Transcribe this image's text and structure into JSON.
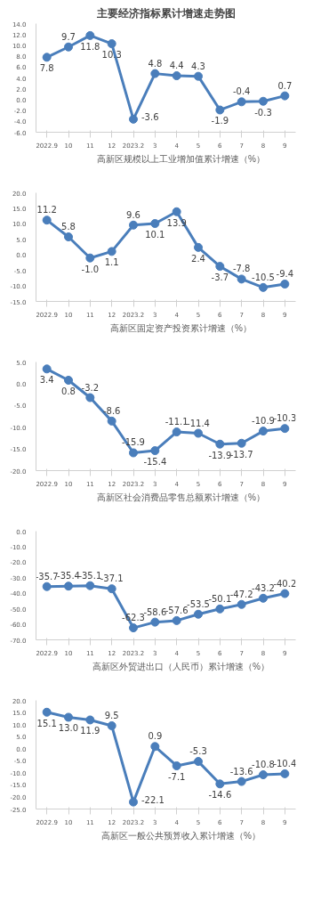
{
  "chart_data": [
    {
      "type": "line",
      "title": "主要经济指标累计增速走势图",
      "categories": [
        "2022.9",
        "10",
        "11",
        "12",
        "2023.2",
        "3",
        "4",
        "5",
        "6",
        "7",
        "8",
        "9"
      ],
      "series": [
        {
          "name": "高新区规模以上工业增加值累计增速（%）",
          "color": "#4a7ebb",
          "values": [
            7.8,
            9.7,
            11.8,
            10.3,
            -3.6,
            4.8,
            4.4,
            4.3,
            -1.9,
            -0.4,
            -0.3,
            0.7
          ],
          "value_labels": [
            "7.8",
            "9.7",
            "11.8",
            "10.3",
            "-3.6",
            "4.8",
            "4.4",
            "4.3",
            "-1.9",
            "-0.4",
            "-0.3",
            "0.7"
          ]
        }
      ],
      "ylim": [
        -6,
        14
      ],
      "yticks": [
        {
          "value": -6,
          "label": "-6.0"
        },
        {
          "value": -4,
          "label": "-4.0"
        },
        {
          "value": -2,
          "label": "-2.0"
        },
        {
          "value": 0,
          "label": "0.0"
        },
        {
          "value": 2,
          "label": "2.0"
        },
        {
          "value": 4,
          "label": "4.0"
        },
        {
          "value": 6,
          "label": "6.0"
        },
        {
          "value": 8,
          "label": "8.0"
        },
        {
          "value": 10,
          "label": "10.0"
        },
        {
          "value": 12,
          "label": "12.0"
        },
        {
          "value": 14,
          "label": "14.0"
        }
      ],
      "legend": "bottom",
      "marker": "circle",
      "line_style": "solid"
    },
    {
      "type": "line",
      "categories": [
        "2022.9",
        "10",
        "11",
        "12",
        "2023.2",
        "3",
        "4",
        "5",
        "6",
        "7",
        "8",
        "9"
      ],
      "series": [
        {
          "name": "高新区固定资产投资累计增速（%）",
          "color": "#4a7ebb",
          "values": [
            11.2,
            5.8,
            -1.0,
            1.1,
            9.6,
            10.1,
            13.9,
            2.4,
            -3.7,
            -7.8,
            -10.5,
            -9.4
          ],
          "value_labels": [
            "11.2",
            "5.8",
            "-1.0",
            "1.1",
            "9.6",
            "10.1",
            "13.9",
            "2.4",
            "-3.7",
            "-7.8",
            "-10.5",
            "-9.4"
          ]
        }
      ],
      "ylim": [
        -15,
        20
      ],
      "yticks": [
        {
          "value": -15,
          "label": "-15.0"
        },
        {
          "value": -10,
          "label": "-10.0"
        },
        {
          "value": -5,
          "label": "-5.0"
        },
        {
          "value": 0,
          "label": "0.0"
        },
        {
          "value": 5,
          "label": "5.0"
        },
        {
          "value": 10,
          "label": "10.0"
        },
        {
          "value": 15,
          "label": "15.0"
        },
        {
          "value": 20,
          "label": "20.0"
        }
      ],
      "legend": "bottom",
      "marker": "circle",
      "line_style": "solid"
    },
    {
      "type": "line",
      "categories": [
        "2022.9",
        "10",
        "11",
        "12",
        "2023.2",
        "3",
        "4",
        "5",
        "6",
        "7",
        "8",
        "9"
      ],
      "series": [
        {
          "name": "高新区社会消费品零售总额累计增速（%）",
          "color": "#4a7ebb",
          "values": [
            3.4,
            0.8,
            -3.2,
            -8.6,
            -15.9,
            -15.4,
            -11.1,
            -11.4,
            -13.9,
            -13.7,
            -10.9,
            -10.3
          ],
          "value_labels": [
            "3.4",
            "0.8",
            "-3.2",
            "-8.6",
            "-15.9",
            "-15.4",
            "-11.1",
            "-11.4",
            "-13.9",
            "-13.7",
            "-10.9",
            "-10.3"
          ]
        }
      ],
      "ylim": [
        -20,
        5
      ],
      "yticks": [
        {
          "value": -20,
          "label": "-20.0"
        },
        {
          "value": -15,
          "label": "-15.0"
        },
        {
          "value": -10,
          "label": "-10.0"
        },
        {
          "value": -5,
          "label": "-5.0"
        },
        {
          "value": 0,
          "label": "0.0"
        },
        {
          "value": 5,
          "label": "5.0"
        }
      ],
      "legend": "bottom",
      "marker": "circle",
      "line_style": "solid"
    },
    {
      "type": "line",
      "categories": [
        "2022.9",
        "10",
        "11",
        "12",
        "2023.2",
        "3",
        "4",
        "5",
        "6",
        "7",
        "8",
        "9"
      ],
      "series": [
        {
          "name": "高新区外贸进出口（人民币）累计增速（%）",
          "color": "#4a7ebb",
          "values": [
            -35.7,
            -35.4,
            -35.1,
            -37.1,
            -62.3,
            -58.6,
            -57.6,
            -53.5,
            -50.1,
            -47.2,
            -43.2,
            -40.2
          ],
          "value_labels": [
            "-35.7",
            "-35.4",
            "-35.1",
            "-37.1",
            "-62.3",
            "-58.6",
            "-57.6",
            "-53.5",
            "-50.1",
            "-47.2",
            "-43.2",
            "-40.2"
          ]
        }
      ],
      "ylim": [
        -70,
        0
      ],
      "yticks": [
        {
          "value": -70,
          "label": "-70.0"
        },
        {
          "value": -60,
          "label": "-60.0"
        },
        {
          "value": -50,
          "label": "-50.0"
        },
        {
          "value": -40,
          "label": "-40.0"
        },
        {
          "value": -30,
          "label": "-30.0"
        },
        {
          "value": -20,
          "label": "-20.0"
        },
        {
          "value": -10,
          "label": "-10.0"
        },
        {
          "value": 0,
          "label": "0.0"
        }
      ],
      "legend": "bottom",
      "marker": "circle",
      "line_style": "solid"
    },
    {
      "type": "line",
      "categories": [
        "2022.9",
        "10",
        "11",
        "12",
        "2023.2",
        "3",
        "4",
        "5",
        "6",
        "7",
        "8",
        "9"
      ],
      "series": [
        {
          "name": "高新区一般公共预算收入累计增速（%）",
          "color": "#4a7ebb",
          "values": [
            15.1,
            13.0,
            11.9,
            9.5,
            -22.1,
            0.9,
            -7.1,
            -5.3,
            -14.6,
            -13.6,
            -10.8,
            -10.4
          ],
          "value_labels": [
            "15.1",
            "13.0",
            "11.9",
            "9.5",
            "-22.1",
            "0.9",
            "-7.1",
            "-5.3",
            "-14.6",
            "-13.6",
            "-10.8",
            "-10.4"
          ]
        }
      ],
      "ylim": [
        -25,
        20
      ],
      "yticks": [
        {
          "value": -25,
          "label": "-25.0"
        },
        {
          "value": -20,
          "label": "-20.0"
        },
        {
          "value": -15,
          "label": "-15.0"
        },
        {
          "value": -10,
          "label": "-10.0"
        },
        {
          "value": -5,
          "label": "-5.0"
        },
        {
          "value": 0,
          "label": "0.0"
        },
        {
          "value": 5,
          "label": "5.0"
        },
        {
          "value": 10,
          "label": "10.0"
        },
        {
          "value": 15,
          "label": "15.0"
        },
        {
          "value": 20,
          "label": "20.0"
        }
      ],
      "legend": "bottom",
      "marker": "circle",
      "line_style": "solid"
    }
  ]
}
